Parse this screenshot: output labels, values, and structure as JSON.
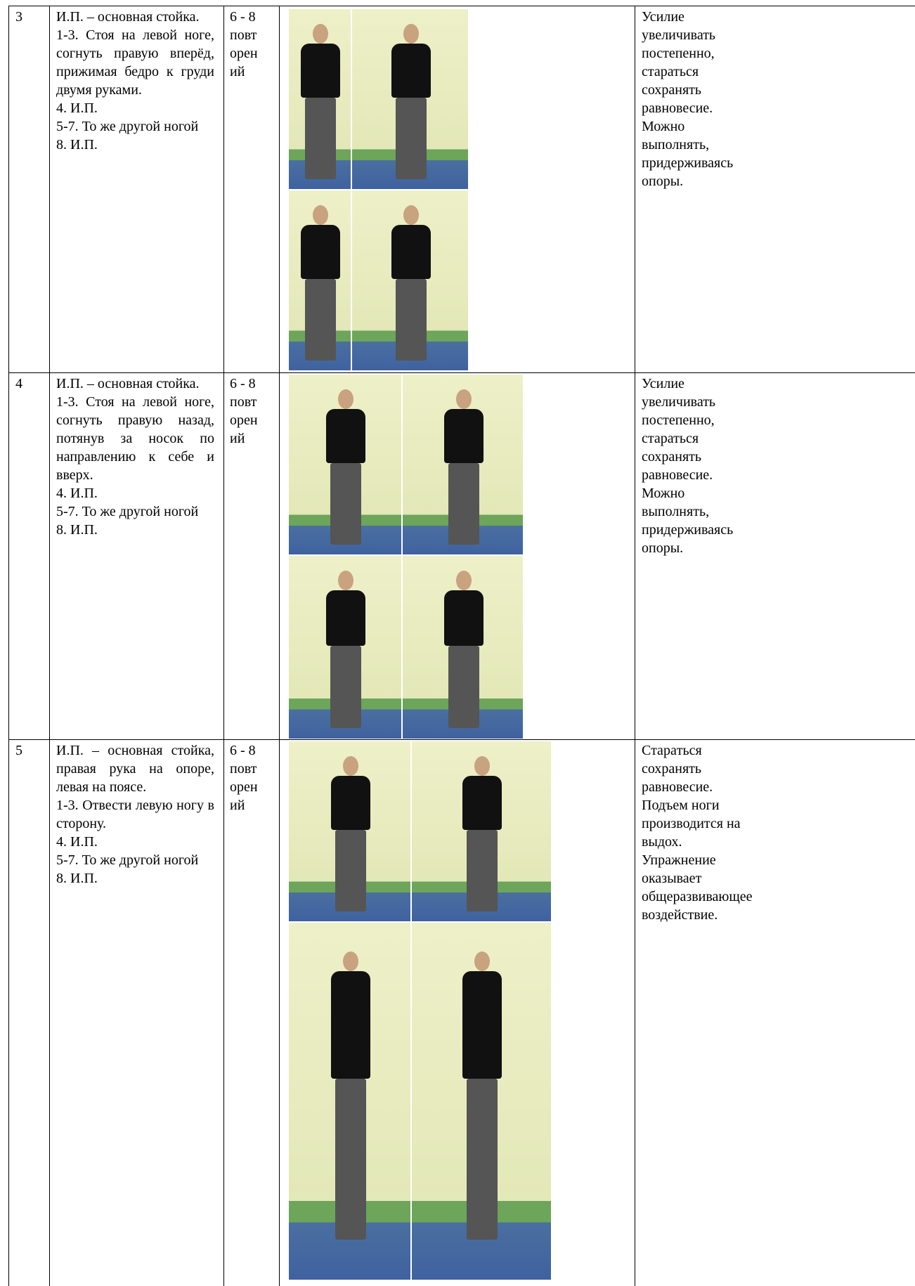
{
  "rows": [
    {
      "number": "3",
      "description": [
        "И.П. – основная стойка.",
        "1-3. Стоя на левой ноге, согнуть правую вперёд, прижимая бедро к груди двумя руками.",
        "4. И.П.",
        "5-7. То же другой ногой",
        "8. И.П."
      ],
      "repetitions": [
        "6 - 8",
        "повт",
        "орен",
        "ий"
      ],
      "notes": [
        "Усилие",
        "увеличивать",
        "постепенно,",
        "стараться",
        "сохранять",
        "равновесие.",
        "Можно",
        "выполнять,",
        "придерживаясь",
        "опоры."
      ]
    },
    {
      "number": "4",
      "description": [
        "И.П. – основная стойка.",
        "1-3. Стоя на левой ноге, согнуть правую назад, потянув за носок по направлению к себе и вверх.",
        "4. И.П.",
        "5-7. То же другой ногой",
        "8. И.П."
      ],
      "repetitions": [
        "6 - 8",
        "повт",
        "орен",
        "ий"
      ],
      "notes": [
        "Усилие",
        "увеличивать",
        "постепенно,",
        "стараться",
        "сохранять",
        "равновесие.",
        "Можно",
        "выполнять,",
        "придерживаясь",
        "опоры."
      ]
    },
    {
      "number": "5",
      "description": [
        "И.П. – основная стойка, правая рука на опоре, левая на поясе.",
        "1-3. Отвести левую ногу в сторону.",
        "4. И.П.",
        "5-7. То же другой ногой",
        "8. И.П."
      ],
      "repetitions": [
        "6 - 8",
        "повт",
        "орен",
        "ий"
      ],
      "notes": [
        "Старaться",
        "сохранять",
        "равновесие.",
        "Подъем ноги",
        "производится на",
        "выдох.",
        "Упражнение",
        "оказывает",
        "общеразвивающее",
        "воздействие."
      ]
    }
  ]
}
